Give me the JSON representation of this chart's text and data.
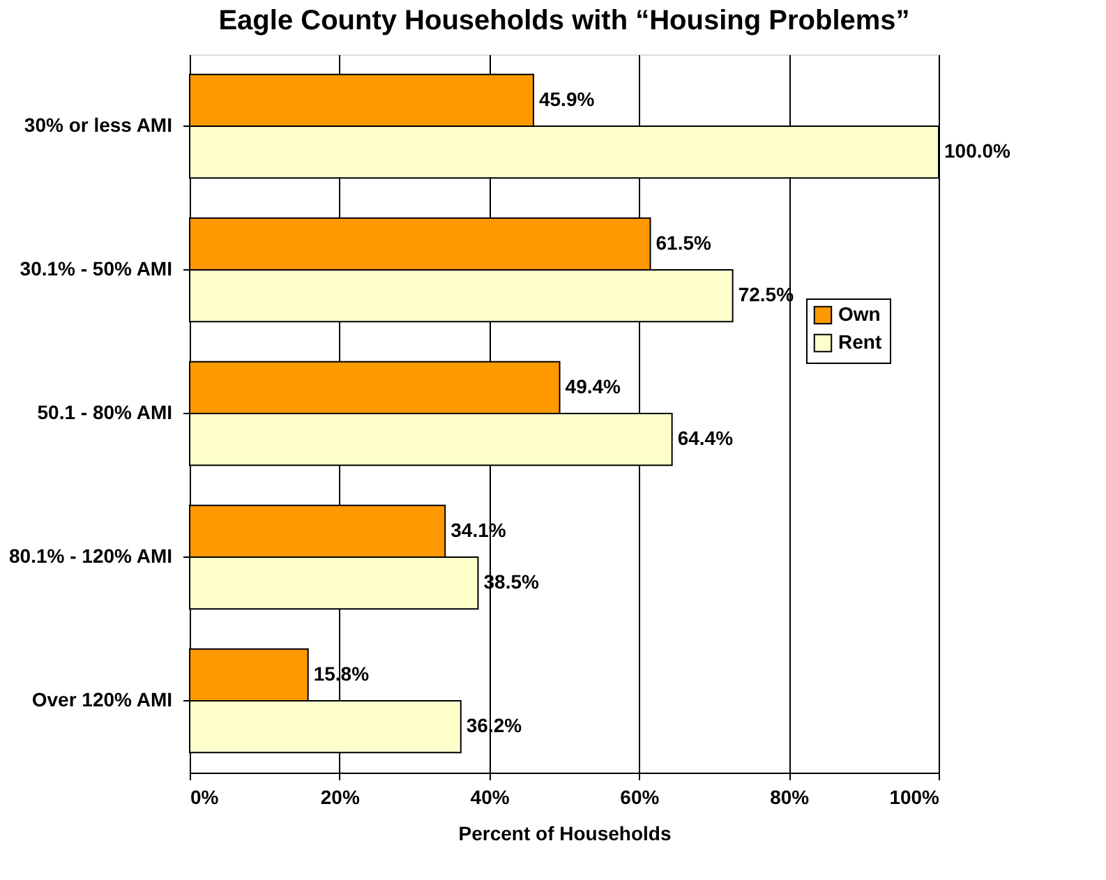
{
  "chart_data": {
    "type": "bar",
    "orientation": "horizontal",
    "title": "Eagle County Households with “Housing Problems”",
    "xlabel": "Percent of Households",
    "categories": [
      "30% or less AMI",
      "30.1% - 50% AMI",
      "50.1 - 80% AMI",
      "80.1% - 120% AMI",
      "Over 120% AMI"
    ],
    "series": [
      {
        "name": "Own",
        "color": "#ff9900",
        "values": [
          45.9,
          61.5,
          49.4,
          34.1,
          15.8
        ],
        "value_labels": [
          "45.9%",
          "61.5%",
          "49.4%",
          "34.1%",
          "15.8%"
        ]
      },
      {
        "name": "Rent",
        "color": "#ffffcc",
        "values": [
          100.0,
          72.5,
          64.4,
          38.5,
          36.2
        ],
        "value_labels": [
          "100.0%",
          "72.5%",
          "64.4%",
          "38.5%",
          "36.2%"
        ]
      }
    ],
    "xlim": [
      0,
      100
    ],
    "xticks": [
      {
        "value": 0,
        "label": "0%"
      },
      {
        "value": 20,
        "label": "20%"
      },
      {
        "value": 40,
        "label": "40%"
      },
      {
        "value": 60,
        "label": "60%"
      },
      {
        "value": 80,
        "label": "80%"
      },
      {
        "value": 100,
        "label": "100%"
      }
    ],
    "grid": "x",
    "legend": "right"
  }
}
